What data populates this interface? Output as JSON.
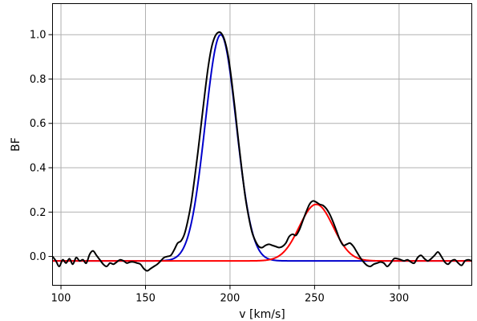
{
  "chart_data": {
    "type": "line",
    "title": "",
    "xlabel": "v [km/s]",
    "ylabel": "BF",
    "xlim": [
      95,
      343
    ],
    "ylim": [
      -0.13,
      1.14
    ],
    "xticks": [
      100,
      150,
      200,
      250,
      300
    ],
    "yticks": [
      0.0,
      0.2,
      0.4,
      0.6,
      0.8,
      1.0
    ],
    "xtick_labels": [
      "100",
      "150",
      "200",
      "250",
      "300"
    ],
    "ytick_labels": [
      "0.0",
      "0.2",
      "0.4",
      "0.6",
      "0.8",
      "1.0"
    ],
    "grid": true,
    "legend": "none",
    "series": [
      {
        "color": "#000000",
        "style": "solid",
        "points": [
          [
            95,
            0.0
          ],
          [
            97,
            -0.02
          ],
          [
            99,
            -0.045
          ],
          [
            101,
            -0.015
          ],
          [
            103,
            -0.03
          ],
          [
            105,
            -0.01
          ],
          [
            107,
            -0.035
          ],
          [
            109,
            -0.005
          ],
          [
            111,
            -0.02
          ],
          [
            113,
            -0.015
          ],
          [
            115,
            -0.03
          ],
          [
            117,
            0.01
          ],
          [
            119,
            0.025
          ],
          [
            121,
            0.005
          ],
          [
            123,
            -0.015
          ],
          [
            125,
            -0.035
          ],
          [
            127,
            -0.045
          ],
          [
            129,
            -0.03
          ],
          [
            131,
            -0.035
          ],
          [
            133,
            -0.025
          ],
          [
            135,
            -0.015
          ],
          [
            137,
            -0.02
          ],
          [
            139,
            -0.03
          ],
          [
            141,
            -0.025
          ],
          [
            143,
            -0.025
          ],
          [
            145,
            -0.03
          ],
          [
            147,
            -0.035
          ],
          [
            149,
            -0.055
          ],
          [
            151,
            -0.065
          ],
          [
            153,
            -0.055
          ],
          [
            155,
            -0.045
          ],
          [
            157,
            -0.035
          ],
          [
            159,
            -0.02
          ],
          [
            161,
            -0.005
          ],
          [
            163,
            0.0
          ],
          [
            165,
            0.005
          ],
          [
            167,
            0.03
          ],
          [
            169,
            0.06
          ],
          [
            171,
            0.07
          ],
          [
            173,
            0.1
          ],
          [
            175,
            0.16
          ],
          [
            177,
            0.24
          ],
          [
            179,
            0.35
          ],
          [
            181,
            0.47
          ],
          [
            183,
            0.6
          ],
          [
            185,
            0.73
          ],
          [
            187,
            0.85
          ],
          [
            189,
            0.94
          ],
          [
            191,
            0.99
          ],
          [
            193,
            1.01
          ],
          [
            195,
            1.005
          ],
          [
            197,
            0.97
          ],
          [
            199,
            0.9
          ],
          [
            201,
            0.79
          ],
          [
            203,
            0.66
          ],
          [
            205,
            0.52
          ],
          [
            207,
            0.39
          ],
          [
            209,
            0.27
          ],
          [
            211,
            0.18
          ],
          [
            213,
            0.11
          ],
          [
            215,
            0.07
          ],
          [
            217,
            0.045
          ],
          [
            219,
            0.04
          ],
          [
            221,
            0.05
          ],
          [
            223,
            0.055
          ],
          [
            225,
            0.05
          ],
          [
            227,
            0.045
          ],
          [
            229,
            0.04
          ],
          [
            231,
            0.045
          ],
          [
            233,
            0.06
          ],
          [
            235,
            0.09
          ],
          [
            237,
            0.1
          ],
          [
            239,
            0.095
          ],
          [
            241,
            0.12
          ],
          [
            243,
            0.16
          ],
          [
            245,
            0.2
          ],
          [
            247,
            0.235
          ],
          [
            249,
            0.25
          ],
          [
            251,
            0.245
          ],
          [
            253,
            0.235
          ],
          [
            255,
            0.23
          ],
          [
            257,
            0.215
          ],
          [
            259,
            0.19
          ],
          [
            261,
            0.155
          ],
          [
            263,
            0.115
          ],
          [
            265,
            0.075
          ],
          [
            267,
            0.05
          ],
          [
            269,
            0.055
          ],
          [
            271,
            0.06
          ],
          [
            273,
            0.045
          ],
          [
            275,
            0.02
          ],
          [
            277,
            -0.005
          ],
          [
            279,
            -0.025
          ],
          [
            281,
            -0.04
          ],
          [
            283,
            -0.045
          ],
          [
            285,
            -0.035
          ],
          [
            287,
            -0.03
          ],
          [
            289,
            -0.025
          ],
          [
            291,
            -0.03
          ],
          [
            293,
            -0.045
          ],
          [
            295,
            -0.03
          ],
          [
            297,
            -0.01
          ],
          [
            299,
            -0.01
          ],
          [
            301,
            -0.015
          ],
          [
            303,
            -0.02
          ],
          [
            305,
            -0.015
          ],
          [
            307,
            -0.025
          ],
          [
            309,
            -0.03
          ],
          [
            311,
            -0.005
          ],
          [
            313,
            0.005
          ],
          [
            315,
            -0.01
          ],
          [
            317,
            -0.02
          ],
          [
            319,
            -0.01
          ],
          [
            321,
            0.005
          ],
          [
            323,
            0.02
          ],
          [
            325,
            0.0
          ],
          [
            327,
            -0.025
          ],
          [
            329,
            -0.035
          ],
          [
            331,
            -0.02
          ],
          [
            333,
            -0.015
          ],
          [
            335,
            -0.03
          ],
          [
            337,
            -0.04
          ],
          [
            339,
            -0.02
          ],
          [
            341,
            -0.015
          ],
          [
            343,
            -0.02
          ]
        ]
      },
      {
        "color": "#0000cc",
        "style": "gaussian",
        "amplitude": 1.02,
        "center": 194.5,
        "sigma": 9.2,
        "baseline": -0.02
      },
      {
        "color": "#ff0000",
        "style": "gaussian",
        "amplitude": 0.255,
        "center": 251,
        "sigma": 10.0,
        "baseline": -0.02
      }
    ]
  }
}
